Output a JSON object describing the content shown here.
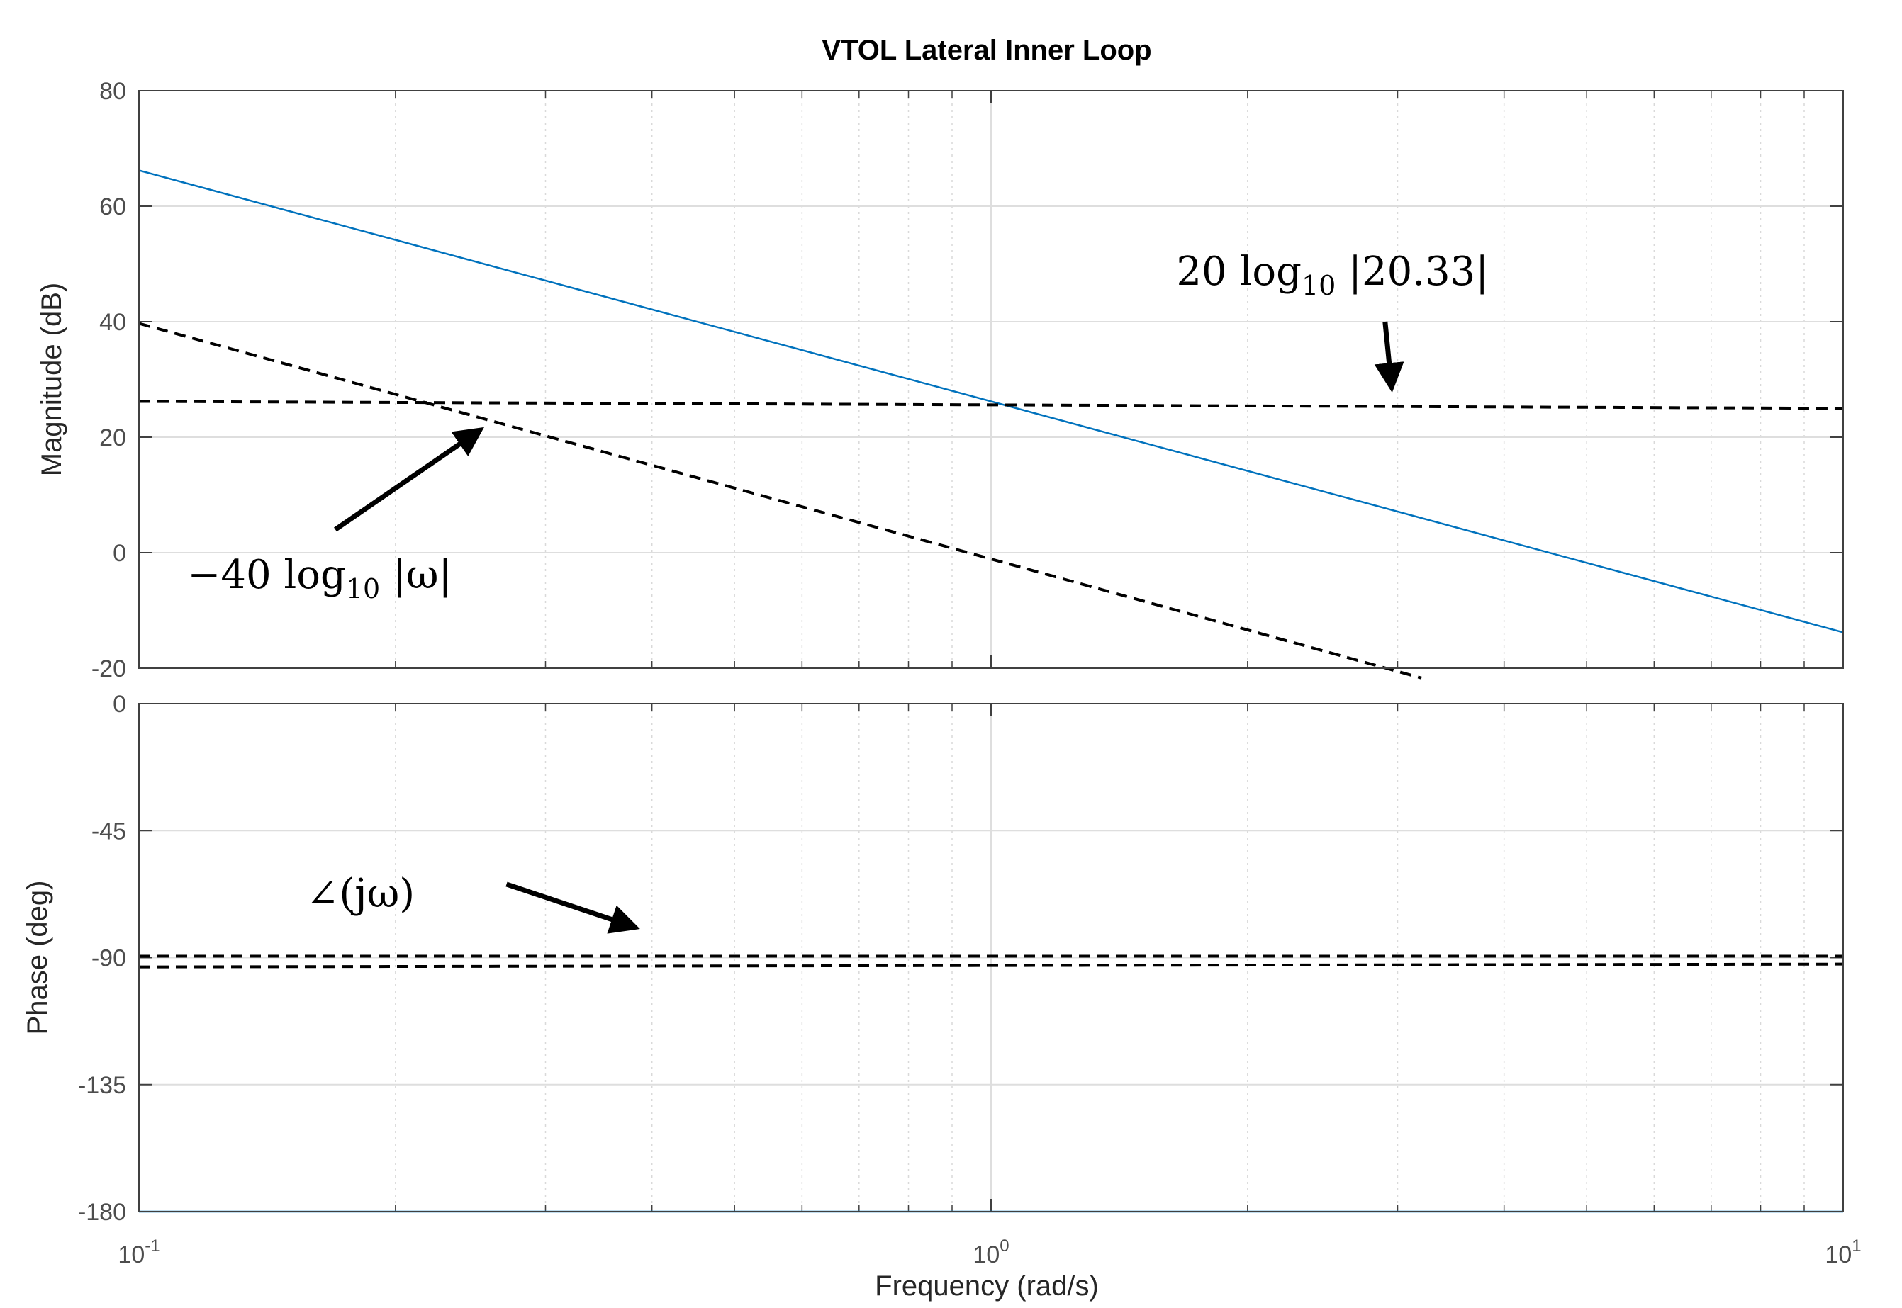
{
  "chart_data": {
    "type": "line",
    "title": "VTOL Lateral Inner Loop",
    "xlabel": "Frequency  (rad/s)",
    "xscale": "log",
    "xlim": [
      0.1,
      10
    ],
    "x_ticks": [
      {
        "base": "10",
        "exp": "-1"
      },
      {
        "base": "10",
        "exp": "0"
      },
      {
        "base": "10",
        "exp": "1"
      }
    ],
    "grid": true,
    "legend": "none",
    "colors": {
      "series": "#0072bd",
      "asymptote": "#000000"
    },
    "panels": [
      {
        "name": "magnitude",
        "ylabel": "Magnitude (dB)",
        "ylim": [
          -20,
          80
        ],
        "yticks": [
          "-20",
          "0",
          "20",
          "40",
          "60",
          "80"
        ],
        "series": [
          {
            "style": "solid",
            "x": [
              0.1,
              10
            ],
            "y": [
              66.2,
              -13.8
            ]
          },
          {
            "style": "dashed",
            "x": [
              0.1,
              10
            ],
            "y": [
              26.2,
              25.0
            ]
          },
          {
            "style": "dashed",
            "x": [
              0.1,
              3.2
            ],
            "y": [
              39.7,
              -21.7
            ]
          }
        ],
        "annotations": [
          {
            "text": "20 log",
            "sub": "10",
            "rest": " |20.33|",
            "arrow_from": [
              2.9,
              40
            ],
            "arrow_to": [
              2.95,
              29
            ]
          },
          {
            "text": "−40 log",
            "sub": "10",
            "rest": " |ω|",
            "arrow_from": [
              0.17,
              4
            ],
            "arrow_to": [
              0.25,
              21
            ]
          }
        ]
      },
      {
        "name": "phase",
        "ylabel": "Phase (deg)",
        "ylim": [
          -180,
          0
        ],
        "yticks": [
          "-180",
          "-135",
          "-90",
          "-45",
          "0"
        ],
        "series": [
          {
            "style": "solid",
            "x": [
              0.1,
              10
            ],
            "y": [
              -180,
              -180
            ]
          },
          {
            "style": "dashed",
            "x": [
              0.1,
              10
            ],
            "y": [
              -89.5,
              -89.5
            ]
          },
          {
            "style": "dashed",
            "x": [
              0.1,
              10
            ],
            "y": [
              -93.3,
              -92.3
            ]
          }
        ],
        "annotations": [
          {
            "text": "∠(jω)",
            "sub": "",
            "rest": "",
            "arrow_from": [
              0.27,
              -64
            ],
            "arrow_to": [
              0.38,
              -79
            ]
          }
        ]
      }
    ]
  }
}
